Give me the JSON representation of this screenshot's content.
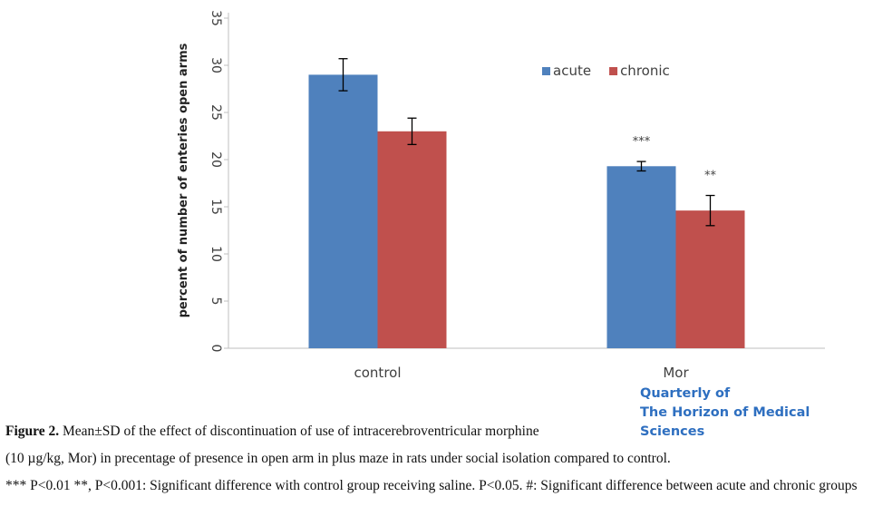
{
  "chart_data": {
    "type": "bar",
    "categories": [
      "control",
      "Mor"
    ],
    "series": [
      {
        "name": "acute",
        "color": "#4f81bd",
        "values": [
          29.0,
          19.3
        ],
        "errors": [
          1.7,
          0.5
        ]
      },
      {
        "name": "chronic",
        "color": "#c0504d",
        "values": [
          23.0,
          14.6
        ],
        "errors": [
          1.4,
          1.6
        ]
      }
    ],
    "significance": [
      {
        "category": "Mor",
        "series": "acute",
        "label": "***"
      },
      {
        "category": "Mor",
        "series": "chronic",
        "label": "**"
      }
    ],
    "title": "",
    "xlabel": "",
    "ylabel": "percent of number of enteries open arms",
    "ylim": [
      0,
      35
    ],
    "yticks": [
      0,
      5,
      10,
      15,
      20,
      25,
      30,
      35
    ],
    "legend": "top-right",
    "grid": false
  },
  "journal": {
    "line1": "Quarterly of",
    "line2": "The Horizon of Medical Sciences"
  },
  "caption": {
    "figure_label": "Figure 2.",
    "line1": "Mean±SD of the effect of discontinuation of use of intracerebroventricular morphine",
    "line2": "(10 µg/kg, Mor) in precentage of presence in open arm in plus maze in rats under social isolation compared to control.",
    "line3": "*** P<0.01 **, P<0.001: Significant difference with control group receiving saline. P<0.05. #: Significant difference between acute and chronic groups"
  }
}
